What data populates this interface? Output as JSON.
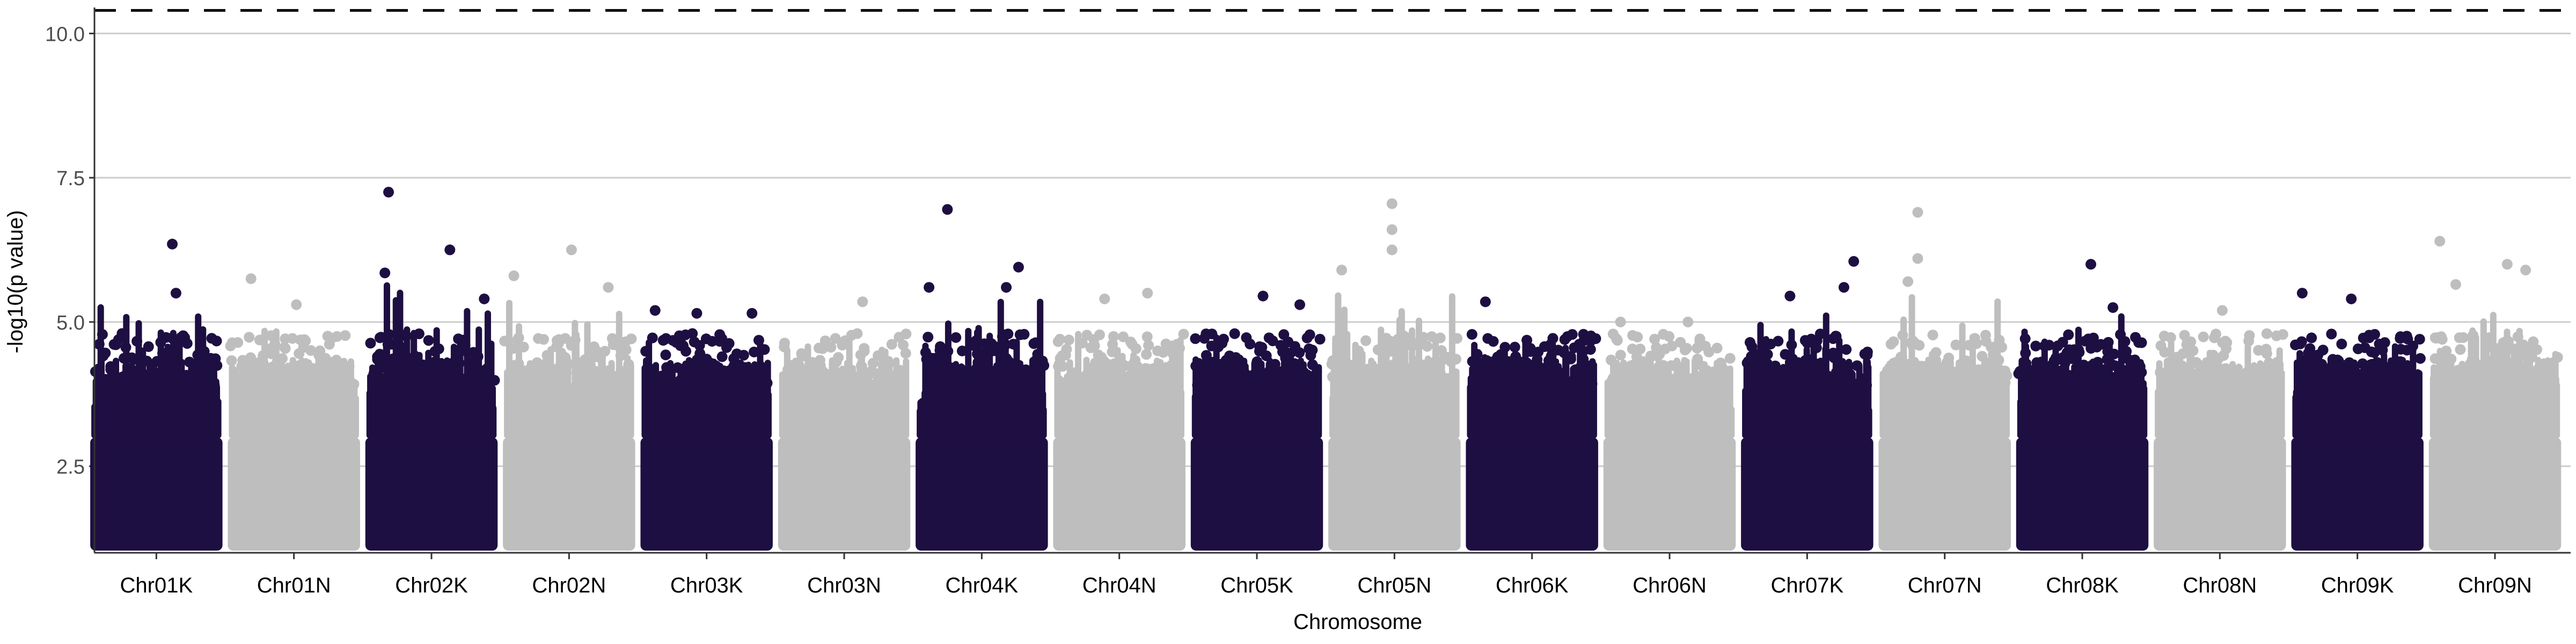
{
  "chart_data": {
    "type": "scatter",
    "subtype": "manhattan",
    "title": "",
    "xlabel": "Chromosome",
    "ylabel": "-log10(p value)",
    "ylim": [
      1.0,
      10.45
    ],
    "yticks": [
      2.5,
      5.0,
      7.5,
      10.0
    ],
    "ytick_labels": [
      "2.5",
      "5.0",
      "7.5",
      "10.0"
    ],
    "grid": "horizontal major lines",
    "threshold": {
      "value": 10.4,
      "style": "dashed",
      "color": "#000000"
    },
    "colors": {
      "odd": "#1e0f42",
      "even": "#bebebe"
    },
    "categories": [
      "Chr01K",
      "Chr01N",
      "Chr02K",
      "Chr02N",
      "Chr03K",
      "Chr03N",
      "Chr04K",
      "Chr04N",
      "Chr05K",
      "Chr05N",
      "Chr06K",
      "Chr06N",
      "Chr07K",
      "Chr07N",
      "Chr08K",
      "Chr08N",
      "Chr09K",
      "Chr09N"
    ],
    "chromosome_max_y": [
      6.35,
      5.75,
      7.25,
      6.25,
      5.2,
      5.35,
      6.95,
      5.5,
      5.45,
      7.05,
      5.35,
      5.0,
      6.05,
      6.9,
      6.0,
      5.25,
      5.5,
      6.4
    ],
    "notable_points": [
      {
        "chr": "Chr01K",
        "pos": 0.63,
        "y": 6.35
      },
      {
        "chr": "Chr01K",
        "pos": 0.66,
        "y": 5.5
      },
      {
        "chr": "Chr01K",
        "pos": 0.22,
        "y": 4.8
      },
      {
        "chr": "Chr01N",
        "pos": 0.15,
        "y": 5.75
      },
      {
        "chr": "Chr01N",
        "pos": 0.52,
        "y": 5.3
      },
      {
        "chr": "Chr02K",
        "pos": 0.15,
        "y": 7.25
      },
      {
        "chr": "Chr02K",
        "pos": 0.65,
        "y": 6.25
      },
      {
        "chr": "Chr02K",
        "pos": 0.12,
        "y": 5.85
      },
      {
        "chr": "Chr02K",
        "pos": 0.93,
        "y": 5.4
      },
      {
        "chr": "Chr02N",
        "pos": 0.52,
        "y": 6.25
      },
      {
        "chr": "Chr02N",
        "pos": 0.05,
        "y": 5.8
      },
      {
        "chr": "Chr02N",
        "pos": 0.82,
        "y": 5.6
      },
      {
        "chr": "Chr03K",
        "pos": 0.08,
        "y": 5.2
      },
      {
        "chr": "Chr03K",
        "pos": 0.42,
        "y": 5.15
      },
      {
        "chr": "Chr03K",
        "pos": 0.87,
        "y": 5.15
      },
      {
        "chr": "Chr03N",
        "pos": 0.65,
        "y": 5.35
      },
      {
        "chr": "Chr04K",
        "pos": 0.22,
        "y": 6.95
      },
      {
        "chr": "Chr04K",
        "pos": 0.8,
        "y": 5.95
      },
      {
        "chr": "Chr04K",
        "pos": 0.07,
        "y": 5.6
      },
      {
        "chr": "Chr04K",
        "pos": 0.7,
        "y": 5.6
      },
      {
        "chr": "Chr04N",
        "pos": 0.73,
        "y": 5.5
      },
      {
        "chr": "Chr04N",
        "pos": 0.38,
        "y": 5.4
      },
      {
        "chr": "Chr05K",
        "pos": 0.55,
        "y": 5.45
      },
      {
        "chr": "Chr05K",
        "pos": 0.85,
        "y": 5.3
      },
      {
        "chr": "Chr05N",
        "pos": 0.48,
        "y": 7.05
      },
      {
        "chr": "Chr05N",
        "pos": 0.48,
        "y": 6.6
      },
      {
        "chr": "Chr05N",
        "pos": 0.48,
        "y": 6.25
      },
      {
        "chr": "Chr05N",
        "pos": 0.07,
        "y": 5.9
      },
      {
        "chr": "Chr06K",
        "pos": 0.12,
        "y": 5.35
      },
      {
        "chr": "Chr06N",
        "pos": 0.1,
        "y": 5.0
      },
      {
        "chr": "Chr06N",
        "pos": 0.65,
        "y": 5.0
      },
      {
        "chr": "Chr07K",
        "pos": 0.88,
        "y": 6.05
      },
      {
        "chr": "Chr07K",
        "pos": 0.8,
        "y": 5.6
      },
      {
        "chr": "Chr07K",
        "pos": 0.36,
        "y": 5.45
      },
      {
        "chr": "Chr07N",
        "pos": 0.28,
        "y": 6.9
      },
      {
        "chr": "Chr07N",
        "pos": 0.28,
        "y": 6.1
      },
      {
        "chr": "Chr07N",
        "pos": 0.2,
        "y": 5.7
      },
      {
        "chr": "Chr08K",
        "pos": 0.57,
        "y": 6.0
      },
      {
        "chr": "Chr08K",
        "pos": 0.75,
        "y": 5.25
      },
      {
        "chr": "Chr08N",
        "pos": 0.52,
        "y": 5.2
      },
      {
        "chr": "Chr09K",
        "pos": 0.05,
        "y": 5.5
      },
      {
        "chr": "Chr09K",
        "pos": 0.45,
        "y": 5.4
      },
      {
        "chr": "Chr09N",
        "pos": 0.05,
        "y": 6.4
      },
      {
        "chr": "Chr09N",
        "pos": 0.6,
        "y": 6.0
      },
      {
        "chr": "Chr09N",
        "pos": 0.75,
        "y": 5.9
      },
      {
        "chr": "Chr09N",
        "pos": 0.18,
        "y": 5.65
      }
    ]
  }
}
